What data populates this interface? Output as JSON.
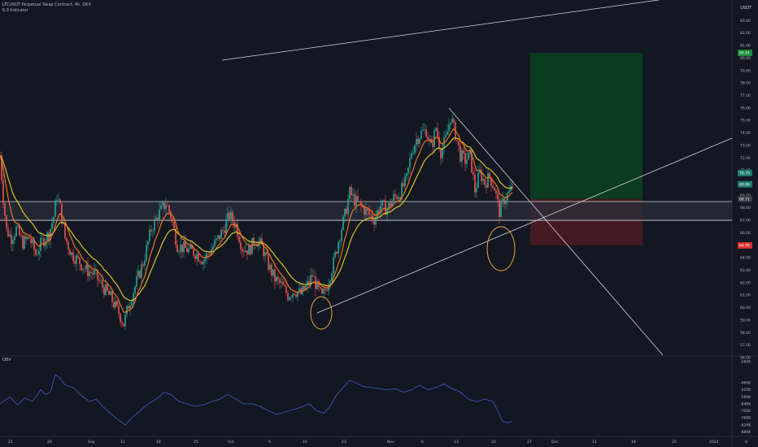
{
  "header": {
    "symbol_line": "LTCUSDT Perpetual Swap Contract, 4h, OKX",
    "indicator_line": "6.9 Indicator",
    "currency": "USDT"
  },
  "obv_label": "OBV",
  "colors": {
    "background": "#131722",
    "candle_up": "#26a69a",
    "candle_down": "#ef5350",
    "ema_fast": "#e9731f",
    "ema_slow": "#d8c229",
    "trendline": "#d1d4dc",
    "zone_fill": "#2a2e39",
    "target_zone": "#0b4020",
    "stop_zone": "#4a1a22",
    "circle": "#e6a23c",
    "obv_line": "#3f51b5",
    "price_tag_green": "#1e8c3c",
    "price_tag_red": "#d62d2d",
    "price_tag_teal": "#1f7a6a",
    "price_tag_dark": "#363a45"
  },
  "chart_data": [
    {
      "type": "candlestick",
      "title": "LTCUSDT Perpetual Swap Contract, 4h, OKX",
      "xlabel": "",
      "ylabel": "USDT",
      "x_tick_labels": [
        "21",
        "28",
        "Sep",
        "11",
        "18",
        "25",
        "Oct",
        "9",
        "16",
        "23",
        "Nov",
        "6",
        "13",
        "20",
        "27",
        "Dec",
        "11",
        "18",
        "25",
        "2024",
        "8"
      ],
      "y_tick_labels": [
        "83.00",
        "82.00",
        "81.00",
        "80.00",
        "79.00",
        "78.00",
        "77.00",
        "76.00",
        "75.00",
        "74.00",
        "73.00",
        "72.00",
        "71.00",
        "70.00",
        "69.00",
        "68.00",
        "67.00",
        "66.00",
        "65.00",
        "64.00",
        "63.00",
        "62.00",
        "61.00",
        "60.00",
        "59.00",
        "58.00",
        "57.00",
        "56.00"
      ],
      "ylim": [
        56,
        84
      ],
      "price_series": [
        {
          "x": 0,
          "close": 72.2
        },
        {
          "x": 4,
          "close": 68.8
        },
        {
          "x": 8,
          "close": 66.2
        },
        {
          "x": 14,
          "close": 65.6
        },
        {
          "x": 20,
          "close": 66.3
        },
        {
          "x": 28,
          "close": 65.2
        },
        {
          "x": 36,
          "close": 65.6
        },
        {
          "x": 44,
          "close": 64.3
        },
        {
          "x": 52,
          "close": 65.3
        },
        {
          "x": 60,
          "close": 65.9
        },
        {
          "x": 66,
          "close": 67.3
        },
        {
          "x": 70,
          "close": 69.0
        },
        {
          "x": 74,
          "close": 68.0
        },
        {
          "x": 80,
          "close": 65.6
        },
        {
          "x": 88,
          "close": 64.3
        },
        {
          "x": 96,
          "close": 63.8
        },
        {
          "x": 106,
          "close": 63.0
        },
        {
          "x": 116,
          "close": 62.7
        },
        {
          "x": 126,
          "close": 61.7
        },
        {
          "x": 136,
          "close": 60.8
        },
        {
          "x": 146,
          "close": 59.6
        },
        {
          "x": 152,
          "close": 58.7
        },
        {
          "x": 158,
          "close": 60.2
        },
        {
          "x": 166,
          "close": 61.7
        },
        {
          "x": 176,
          "close": 63.6
        },
        {
          "x": 186,
          "close": 66.3
        },
        {
          "x": 196,
          "close": 67.6
        },
        {
          "x": 204,
          "close": 68.4
        },
        {
          "x": 210,
          "close": 67.4
        },
        {
          "x": 218,
          "close": 65.0
        },
        {
          "x": 228,
          "close": 64.7
        },
        {
          "x": 240,
          "close": 64.4
        },
        {
          "x": 250,
          "close": 63.8
        },
        {
          "x": 258,
          "close": 64.5
        },
        {
          "x": 266,
          "close": 65.3
        },
        {
          "x": 274,
          "close": 66.2
        },
        {
          "x": 282,
          "close": 67.4
        },
        {
          "x": 290,
          "close": 66.6
        },
        {
          "x": 298,
          "close": 64.8
        },
        {
          "x": 306,
          "close": 64.6
        },
        {
          "x": 314,
          "close": 65.5
        },
        {
          "x": 322,
          "close": 64.9
        },
        {
          "x": 330,
          "close": 63.4
        },
        {
          "x": 338,
          "close": 62.3
        },
        {
          "x": 346,
          "close": 61.8
        },
        {
          "x": 354,
          "close": 61.0
        },
        {
          "x": 362,
          "close": 61.4
        },
        {
          "x": 370,
          "close": 61.1
        },
        {
          "x": 378,
          "close": 61.8
        },
        {
          "x": 384,
          "close": 62.6
        },
        {
          "x": 390,
          "close": 61.6
        },
        {
          "x": 396,
          "close": 60.8
        },
        {
          "x": 402,
          "close": 61.8
        },
        {
          "x": 410,
          "close": 63.6
        },
        {
          "x": 418,
          "close": 65.9
        },
        {
          "x": 424,
          "close": 67.4
        },
        {
          "x": 430,
          "close": 69.2
        },
        {
          "x": 436,
          "close": 68.6
        },
        {
          "x": 444,
          "close": 68.1
        },
        {
          "x": 452,
          "close": 67.6
        },
        {
          "x": 460,
          "close": 67.1
        },
        {
          "x": 468,
          "close": 68.2
        },
        {
          "x": 476,
          "close": 67.9
        },
        {
          "x": 484,
          "close": 68.8
        },
        {
          "x": 492,
          "close": 69.2
        },
        {
          "x": 500,
          "close": 70.3
        },
        {
          "x": 506,
          "close": 72.5
        },
        {
          "x": 512,
          "close": 73.5
        },
        {
          "x": 518,
          "close": 74.0
        },
        {
          "x": 524,
          "close": 74.2
        },
        {
          "x": 530,
          "close": 72.8
        },
        {
          "x": 536,
          "close": 74.4
        },
        {
          "x": 542,
          "close": 72.5
        },
        {
          "x": 548,
          "close": 73.5
        },
        {
          "x": 554,
          "close": 75.3
        },
        {
          "x": 560,
          "close": 73.9
        },
        {
          "x": 566,
          "close": 72.2
        },
        {
          "x": 572,
          "close": 71.8
        },
        {
          "x": 578,
          "close": 72.2
        },
        {
          "x": 584,
          "close": 69.4
        },
        {
          "x": 590,
          "close": 70.8
        },
        {
          "x": 596,
          "close": 70.0
        },
        {
          "x": 602,
          "close": 70.5
        },
        {
          "x": 608,
          "close": 69.6
        },
        {
          "x": 614,
          "close": 67.7
        },
        {
          "x": 620,
          "close": 68.7
        },
        {
          "x": 626,
          "close": 69.2
        },
        {
          "x": 630,
          "close": 69.7
        }
      ],
      "price_labels": [
        "80.41",
        "69.89",
        "70.79",
        "68.71",
        "64.99"
      ],
      "zone_labels": {
        "zone_top": 68.5,
        "zone_bottom": 67.0
      },
      "position": {
        "target": 80.41,
        "entry": 68.71,
        "stop": 64.99
      }
    },
    {
      "type": "line",
      "title": "OBV",
      "xlabel": "",
      "ylabel": "",
      "y_tick_labels": [
        "-280K",
        "-460K",
        "-520K",
        "-580K",
        "-640K",
        "-700K",
        "-760K",
        "-820K",
        "-880K"
      ],
      "ylim": [
        -890000,
        -280000
      ],
      "series": [
        {
          "name": "OBV",
          "points": [
            {
              "x": 0,
              "y": -640000
            },
            {
              "x": 12,
              "y": -580000
            },
            {
              "x": 22,
              "y": -650000
            },
            {
              "x": 30,
              "y": -590000
            },
            {
              "x": 40,
              "y": -620000
            },
            {
              "x": 50,
              "y": -520000
            },
            {
              "x": 56,
              "y": -560000
            },
            {
              "x": 62,
              "y": -540000
            },
            {
              "x": 68,
              "y": -390000
            },
            {
              "x": 74,
              "y": -420000
            },
            {
              "x": 80,
              "y": -480000
            },
            {
              "x": 90,
              "y": -500000
            },
            {
              "x": 100,
              "y": -570000
            },
            {
              "x": 110,
              "y": -620000
            },
            {
              "x": 118,
              "y": -600000
            },
            {
              "x": 126,
              "y": -660000
            },
            {
              "x": 136,
              "y": -720000
            },
            {
              "x": 146,
              "y": -780000
            },
            {
              "x": 154,
              "y": -820000
            },
            {
              "x": 162,
              "y": -760000
            },
            {
              "x": 172,
              "y": -700000
            },
            {
              "x": 182,
              "y": -640000
            },
            {
              "x": 192,
              "y": -600000
            },
            {
              "x": 202,
              "y": -540000
            },
            {
              "x": 210,
              "y": -560000
            },
            {
              "x": 220,
              "y": -620000
            },
            {
              "x": 230,
              "y": -640000
            },
            {
              "x": 240,
              "y": -660000
            },
            {
              "x": 250,
              "y": -650000
            },
            {
              "x": 260,
              "y": -620000
            },
            {
              "x": 270,
              "y": -600000
            },
            {
              "x": 280,
              "y": -560000
            },
            {
              "x": 290,
              "y": -600000
            },
            {
              "x": 300,
              "y": -640000
            },
            {
              "x": 310,
              "y": -640000
            },
            {
              "x": 320,
              "y": -660000
            },
            {
              "x": 330,
              "y": -700000
            },
            {
              "x": 340,
              "y": -730000
            },
            {
              "x": 350,
              "y": -710000
            },
            {
              "x": 360,
              "y": -690000
            },
            {
              "x": 370,
              "y": -670000
            },
            {
              "x": 380,
              "y": -640000
            },
            {
              "x": 390,
              "y": -700000
            },
            {
              "x": 398,
              "y": -720000
            },
            {
              "x": 406,
              "y": -660000
            },
            {
              "x": 414,
              "y": -560000
            },
            {
              "x": 422,
              "y": -500000
            },
            {
              "x": 430,
              "y": -440000
            },
            {
              "x": 438,
              "y": -460000
            },
            {
              "x": 446,
              "y": -490000
            },
            {
              "x": 456,
              "y": -500000
            },
            {
              "x": 466,
              "y": -510000
            },
            {
              "x": 476,
              "y": -520000
            },
            {
              "x": 486,
              "y": -510000
            },
            {
              "x": 496,
              "y": -540000
            },
            {
              "x": 506,
              "y": -520000
            },
            {
              "x": 516,
              "y": -480000
            },
            {
              "x": 526,
              "y": -520000
            },
            {
              "x": 536,
              "y": -500000
            },
            {
              "x": 546,
              "y": -470000
            },
            {
              "x": 556,
              "y": -510000
            },
            {
              "x": 566,
              "y": -540000
            },
            {
              "x": 576,
              "y": -600000
            },
            {
              "x": 586,
              "y": -620000
            },
            {
              "x": 596,
              "y": -600000
            },
            {
              "x": 606,
              "y": -620000
            },
            {
              "x": 612,
              "y": -700000
            },
            {
              "x": 618,
              "y": -790000
            },
            {
              "x": 624,
              "y": -800000
            },
            {
              "x": 630,
              "y": -790000
            }
          ]
        }
      ]
    }
  ]
}
